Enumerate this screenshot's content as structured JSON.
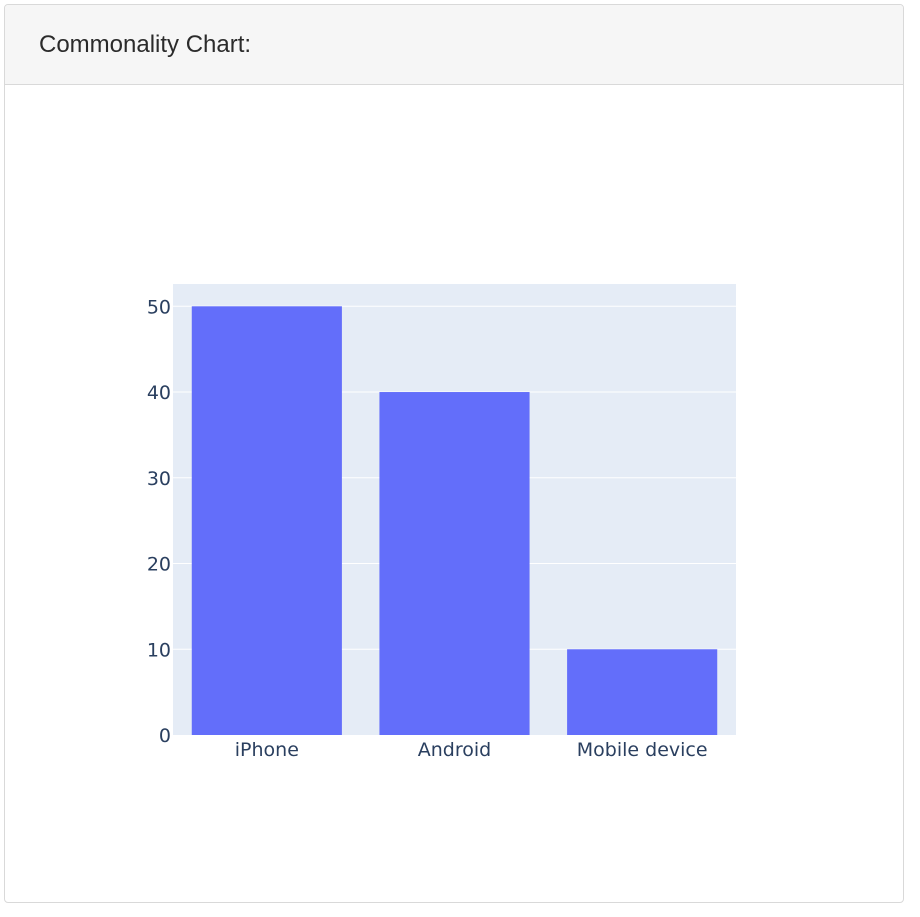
{
  "card": {
    "title": "Commonality Chart:"
  },
  "colors": {
    "bar": "#636efa",
    "plot_bg": "#e5ecf6",
    "grid": "#ffffff",
    "tick_text": "#2a3f5f"
  },
  "chart_data": {
    "type": "bar",
    "categories": [
      "iPhone",
      "Android",
      "Mobile device"
    ],
    "values": [
      50,
      40,
      10
    ],
    "title": "",
    "xlabel": "",
    "ylabel": "",
    "ylim": [
      0,
      52.6
    ],
    "yticks": [
      0,
      10,
      20,
      30,
      40,
      50
    ],
    "grid": true,
    "legend": "none"
  }
}
